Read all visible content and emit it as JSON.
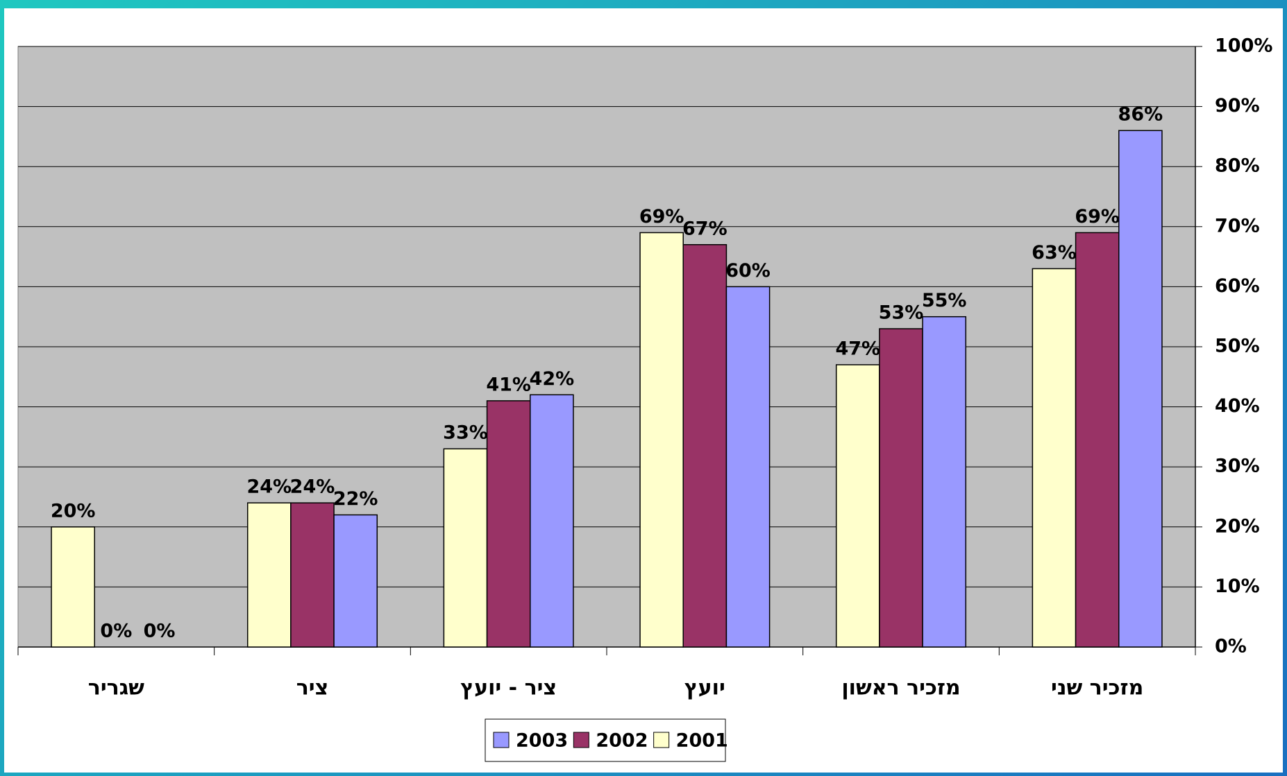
{
  "chart_data": {
    "type": "bar",
    "categories": [
      "שגריר",
      "ציר",
      "ציר - יועץ",
      "יועץ",
      "מזכיר ראשון",
      "מזכיר שני"
    ],
    "series": [
      {
        "name": "2001",
        "color": "#ffffcc",
        "values": [
          20,
          24,
          33,
          69,
          47,
          63
        ],
        "value_labels": [
          "20%",
          "24%",
          "33%",
          "69%",
          "47%",
          "63%"
        ]
      },
      {
        "name": "2002",
        "color": "#993366",
        "values": [
          0,
          24,
          41,
          67,
          53,
          69
        ],
        "value_labels": [
          "0%",
          "24%",
          "41%",
          "67%",
          "53%",
          "69%"
        ]
      },
      {
        "name": "2003",
        "color": "#9999ff",
        "values": [
          0,
          22,
          42,
          60,
          55,
          86
        ],
        "value_labels": [
          "0%",
          "22%",
          "42%",
          "60%",
          "55%",
          "86%"
        ]
      }
    ],
    "ylim": [
      0,
      100
    ],
    "yticks": [
      {
        "value": 0,
        "label": "0%"
      },
      {
        "value": 10,
        "label": "10%"
      },
      {
        "value": 20,
        "label": "20%"
      },
      {
        "value": 30,
        "label": "30%"
      },
      {
        "value": 40,
        "label": "40%"
      },
      {
        "value": 50,
        "label": "50%"
      },
      {
        "value": 60,
        "label": "60%"
      },
      {
        "value": 70,
        "label": "70%"
      },
      {
        "value": 80,
        "label": "80%"
      },
      {
        "value": 90,
        "label": "90%"
      },
      {
        "value": 100,
        "label": "100%"
      }
    ],
    "grid": true
  }
}
